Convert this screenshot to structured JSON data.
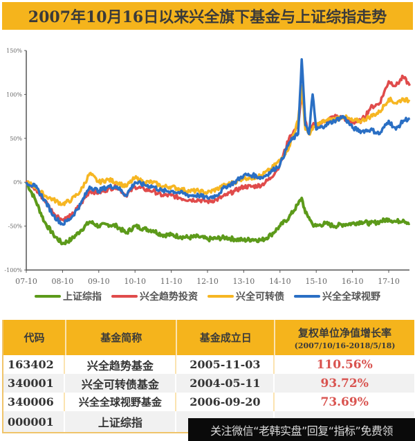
{
  "title": "2007年10月16日以来兴全旗下基金与上证综指走势",
  "colors": {
    "title_bg": "#f5b41c",
    "sse": "#5c9a1a",
    "trend": "#e04b4b",
    "convertible": "#f6b622",
    "global": "#2a6fc4",
    "rate_text": "#d9534f"
  },
  "legend": [
    {
      "label": "上证综指",
      "color": "#5c9a1a"
    },
    {
      "label": "兴全趋势投资",
      "color": "#e04b4b"
    },
    {
      "label": "兴全可转债",
      "color": "#f6b622"
    },
    {
      "label": "兴全全球视野",
      "color": "#2a6fc4"
    }
  ],
  "chart_data": {
    "type": "line",
    "title": "2007年10月16日以来兴全旗下基金与上证综指走势",
    "xlabel": "",
    "ylabel": "",
    "ylim": [
      -100,
      150
    ],
    "yticks": [
      "150%",
      "100%",
      "50%",
      "0%",
      "-50%",
      "-100%"
    ],
    "ytick_values": [
      150,
      100,
      50,
      0,
      -50,
      -100
    ],
    "xticks": [
      "07-10",
      "08-10",
      "09-10",
      "10-10",
      "11-10",
      "12-10",
      "13-10",
      "14-10",
      "15-10",
      "16-10",
      "17-10"
    ],
    "grid": false,
    "legend_position": "bottom",
    "x": [
      0,
      0.25,
      0.5,
      0.75,
      1.0,
      1.25,
      1.5,
      1.75,
      2.0,
      2.25,
      2.5,
      2.75,
      3.0,
      3.25,
      3.5,
      3.75,
      4.0,
      4.25,
      4.5,
      4.75,
      5.0,
      5.25,
      5.5,
      5.75,
      6.0,
      6.25,
      6.5,
      6.75,
      7.0,
      7.25,
      7.5,
      7.6,
      7.7,
      7.8,
      7.9,
      8.0,
      8.25,
      8.5,
      8.75,
      9.0,
      9.25,
      9.5,
      9.75,
      10.0,
      10.2,
      10.4,
      10.58
    ],
    "series": [
      {
        "name": "上证综指",
        "color": "#5c9a1a",
        "values": [
          0,
          -20,
          -45,
          -60,
          -70,
          -65,
          -55,
          -45,
          -50,
          -48,
          -50,
          -58,
          -50,
          -53,
          -55,
          -60,
          -60,
          -62,
          -63,
          -62,
          -65,
          -64,
          -63,
          -65,
          -66,
          -65,
          -66,
          -60,
          -50,
          -40,
          -25,
          -18,
          -35,
          -40,
          -48,
          -50,
          -47,
          -50,
          -48,
          -47,
          -45,
          -47,
          -45,
          -42,
          -45,
          -43,
          -47
        ]
      },
      {
        "name": "兴全趋势投资",
        "color": "#e04b4b",
        "values": [
          0,
          -8,
          -20,
          -35,
          -43,
          -38,
          -25,
          -10,
          -12,
          -8,
          -5,
          -15,
          -5,
          -8,
          -10,
          -15,
          -15,
          -18,
          -20,
          -20,
          -22,
          -20,
          -15,
          -10,
          -5,
          -5,
          -3,
          5,
          20,
          50,
          65,
          100,
          70,
          55,
          65,
          65,
          70,
          75,
          73,
          68,
          70,
          85,
          90,
          115,
          110,
          120,
          110
        ]
      },
      {
        "name": "兴全可转债",
        "color": "#f6b622",
        "values": [
          0,
          -5,
          -15,
          -20,
          -25,
          -20,
          -10,
          10,
          0,
          3,
          0,
          -5,
          5,
          0,
          0,
          -5,
          -5,
          -8,
          -10,
          -10,
          -12,
          -8,
          -3,
          0,
          5,
          5,
          8,
          15,
          25,
          40,
          70,
          110,
          60,
          55,
          60,
          65,
          70,
          72,
          75,
          70,
          70,
          75,
          80,
          95,
          90,
          95,
          92
        ]
      },
      {
        "name": "兴全全球视野",
        "color": "#2a6fc4",
        "values": [
          0,
          -5,
          -20,
          -38,
          -48,
          -40,
          -25,
          -5,
          -10,
          -5,
          -5,
          -15,
          0,
          -3,
          -5,
          -10,
          -10,
          -12,
          -15,
          -15,
          -18,
          -15,
          -5,
          0,
          8,
          8,
          5,
          12,
          20,
          45,
          55,
          140,
          65,
          55,
          100,
          60,
          65,
          70,
          75,
          62,
          58,
          60,
          55,
          70,
          60,
          70,
          73
        ]
      }
    ]
  },
  "table": {
    "headers": [
      "代码",
      "基金简称",
      "基金成立日",
      "复权单位净值增长率"
    ],
    "header_sub": "(2007/10/16-2018/5/18)",
    "rows": [
      {
        "code": "163402",
        "name": "兴全趋势基金",
        "date": "2005-11-03",
        "rate": "110.56%"
      },
      {
        "code": "340001",
        "name": "兴全可转债基金",
        "date": "2004-05-11",
        "rate": "93.72%"
      },
      {
        "code": "340006",
        "name": "兴全全球视野基金",
        "date": "2006-09-20",
        "rate": "73.69%"
      },
      {
        "code": "000001",
        "name": "上证综指",
        "date": "",
        "rate": ""
      }
    ]
  },
  "overlay": {
    "text": "关注微信“老韩实盘”回复“指标”免费领"
  }
}
